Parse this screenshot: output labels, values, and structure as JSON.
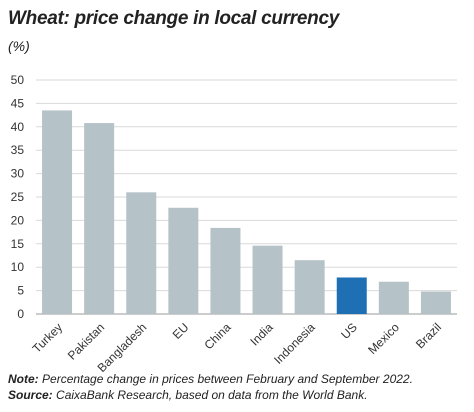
{
  "title": "Wheat: price change in local currency",
  "unit": "(%)",
  "note_label": "Note:",
  "note_text": "Percentage change in prices between February and September 2022.",
  "source_label": "Source:",
  "source_text": "CaixaBank Research, based on data from the World Bank.",
  "chart_data": {
    "type": "bar",
    "title": "Wheat: price change in local currency",
    "ylabel": "(%)",
    "categories": [
      "Turkey",
      "Pakistan",
      "Bangladesh",
      "EU",
      "China",
      "India",
      "Indonesia",
      "US",
      "Mexico",
      "Brazil"
    ],
    "values": [
      43.5,
      40.8,
      26.0,
      22.7,
      18.4,
      14.6,
      11.5,
      7.8,
      6.9,
      4.8
    ],
    "ylim": [
      0,
      50
    ],
    "yticks": [
      0,
      5,
      10,
      15,
      20,
      25,
      30,
      35,
      40,
      45,
      50
    ],
    "grid": true,
    "highlight": "US",
    "colors": {
      "bar": "#b5c3c8",
      "highlight": "#1f6fb5",
      "grid": "#d9d9d9"
    }
  }
}
